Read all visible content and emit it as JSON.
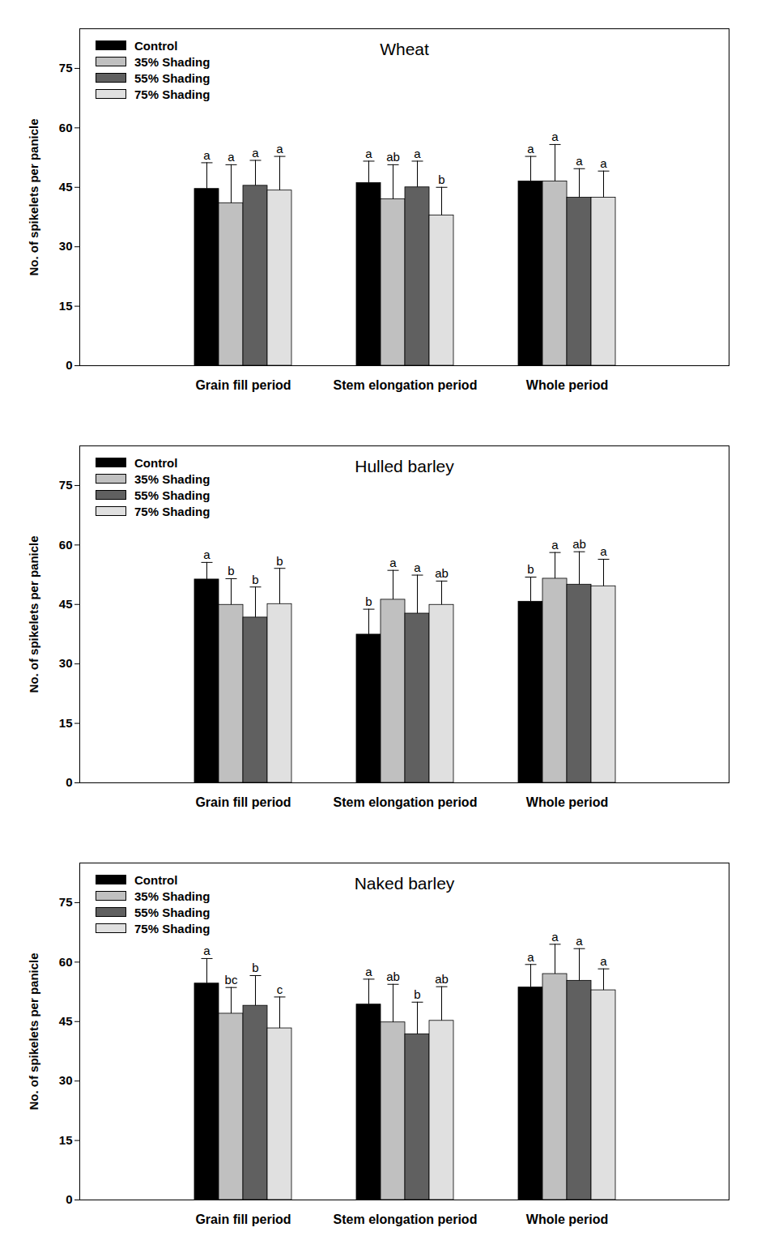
{
  "chart_data": [
    {
      "type": "bar",
      "title": "Wheat",
      "ylabel": "No. of spikelets per panicle",
      "categories": [
        "Grain fill period",
        "Stem elongation period",
        "Whole period"
      ],
      "ylim": [
        0,
        85
      ],
      "yticks": [
        0,
        15,
        30,
        45,
        60,
        75
      ],
      "legend": "top-left",
      "series": [
        {
          "name": "Control",
          "color": "#000000",
          "values": [
            44.6,
            46.1,
            46.5
          ],
          "errors": [
            6.6,
            5.5,
            6.3
          ],
          "letters": [
            "a",
            "a",
            "a"
          ]
        },
        {
          "name": "35% Shading",
          "color": "#c0c0c0",
          "values": [
            41.0,
            42.0,
            46.5
          ],
          "errors": [
            9.7,
            8.7,
            9.3
          ],
          "letters": [
            "a",
            "ab",
            "a"
          ]
        },
        {
          "name": "55% Shading",
          "color": "#606060",
          "values": [
            45.4,
            45.0,
            42.4
          ],
          "errors": [
            6.4,
            6.6,
            7.3
          ],
          "letters": [
            "a",
            "a",
            "a"
          ]
        },
        {
          "name": "75% Shading",
          "color": "#e0e0e0",
          "values": [
            44.2,
            37.9,
            42.4
          ],
          "errors": [
            8.6,
            7.1,
            6.7
          ],
          "letters": [
            "a",
            "b",
            "a"
          ]
        }
      ]
    },
    {
      "type": "bar",
      "title": "Hulled barley",
      "ylabel": "No. of spikelets per panicle",
      "categories": [
        "Grain fill period",
        "Stem elongation period",
        "Whole period"
      ],
      "ylim": [
        0,
        85
      ],
      "yticks": [
        0,
        15,
        30,
        45,
        60,
        75
      ],
      "legend": "top-left",
      "series": [
        {
          "name": "Control",
          "color": "#000000",
          "values": [
            51.3,
            37.4,
            45.7
          ],
          "errors": [
            4.3,
            6.4,
            6.2
          ],
          "letters": [
            "a",
            "b",
            "b"
          ]
        },
        {
          "name": "35% Shading",
          "color": "#c0c0c0",
          "values": [
            44.9,
            46.2,
            51.5
          ],
          "errors": [
            6.6,
            7.4,
            6.6
          ],
          "letters": [
            "b",
            "a",
            "a"
          ]
        },
        {
          "name": "55% Shading",
          "color": "#606060",
          "values": [
            41.7,
            42.7,
            50.0
          ],
          "errors": [
            7.7,
            9.7,
            8.3
          ],
          "letters": [
            "b",
            "a",
            "ab"
          ]
        },
        {
          "name": "75% Shading",
          "color": "#e0e0e0",
          "values": [
            45.1,
            44.9,
            49.6
          ],
          "errors": [
            9.0,
            6.0,
            6.8
          ],
          "letters": [
            "b",
            "ab",
            "a"
          ]
        }
      ]
    },
    {
      "type": "bar",
      "title": "Naked barley",
      "ylabel": "No. of spikelets per panicle",
      "categories": [
        "Grain fill period",
        "Stem elongation period",
        "Whole period"
      ],
      "ylim": [
        0,
        85
      ],
      "yticks": [
        0,
        15,
        30,
        45,
        60,
        75
      ],
      "legend": "top-left",
      "series": [
        {
          "name": "Control",
          "color": "#000000",
          "values": [
            54.6,
            49.3,
            53.6
          ],
          "errors": [
            6.3,
            6.4,
            5.8
          ],
          "letters": [
            "a",
            "a",
            "a"
          ]
        },
        {
          "name": "35% Shading",
          "color": "#c0c0c0",
          "values": [
            47.0,
            44.8,
            57.0
          ],
          "errors": [
            6.6,
            9.6,
            7.5
          ],
          "letters": [
            "bc",
            "ab",
            "a"
          ]
        },
        {
          "name": "55% Shading",
          "color": "#606060",
          "values": [
            49.0,
            41.8,
            55.3
          ],
          "errors": [
            7.6,
            8.1,
            8.1
          ],
          "letters": [
            "b",
            "b",
            "a"
          ]
        },
        {
          "name": "75% Shading",
          "color": "#e0e0e0",
          "values": [
            43.3,
            45.2,
            52.9
          ],
          "errors": [
            7.9,
            8.6,
            5.4
          ],
          "letters": [
            "c",
            "ab",
            "a"
          ]
        }
      ]
    }
  ]
}
